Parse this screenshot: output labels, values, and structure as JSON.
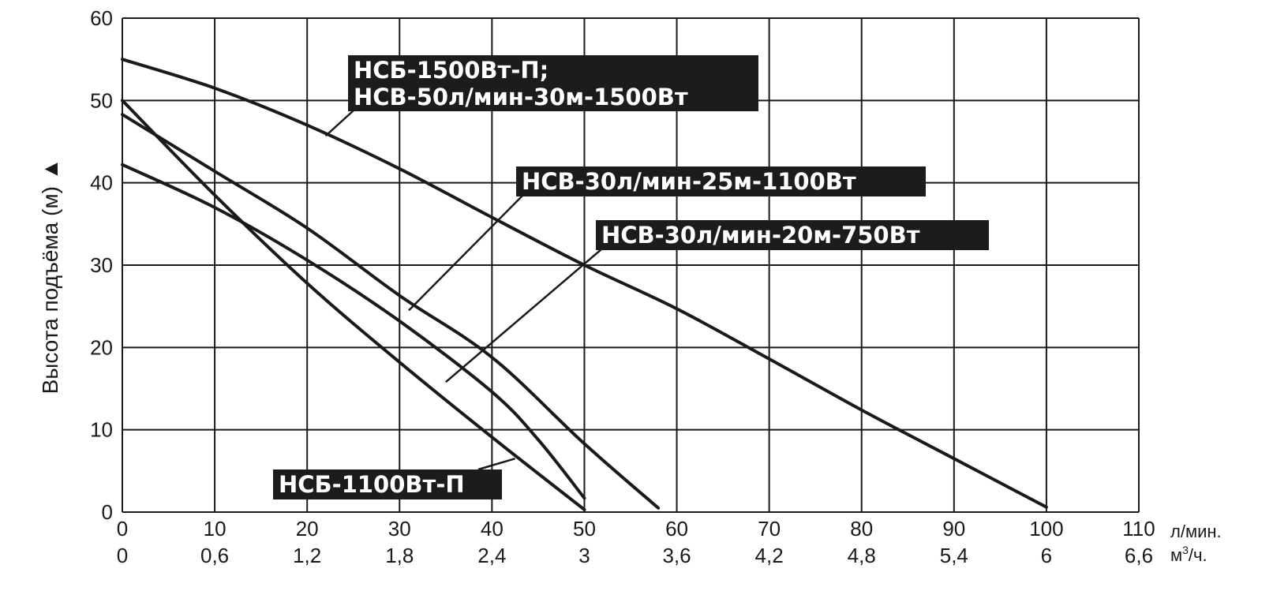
{
  "chart_data": {
    "type": "line",
    "ylabel": "Высота подъёма (м) ▲",
    "x_unit": "л/мин.",
    "x2_unit_base": "м",
    "x2_unit_sup": "3",
    "x2_unit_tail": "/ч.",
    "xlim": [
      0,
      110
    ],
    "ylim": [
      0,
      60
    ],
    "grid": true,
    "x_ticks": [
      0,
      10,
      20,
      30,
      40,
      50,
      60,
      70,
      80,
      90,
      100,
      110
    ],
    "x_tick_labels": [
      "0",
      "10",
      "20",
      "30",
      "40",
      "50",
      "60",
      "70",
      "80",
      "90",
      "100",
      "110"
    ],
    "x2_tick_labels": [
      "0",
      "0,6",
      "1,2",
      "1,8",
      "2,4",
      "3",
      "3,6",
      "4,2",
      "4,8",
      "5,4",
      "6",
      "6,6"
    ],
    "y_ticks": [
      0,
      10,
      20,
      30,
      40,
      50,
      60
    ],
    "y_tick_labels": [
      "0",
      "10",
      "20",
      "30",
      "40",
      "50",
      "60"
    ],
    "series": [
      {
        "points": [
          [
            0,
            55
          ],
          [
            10,
            51.5
          ],
          [
            20,
            47
          ],
          [
            30,
            41.7
          ],
          [
            40,
            35.8
          ],
          [
            50,
            30
          ],
          [
            60,
            24.7
          ],
          [
            70,
            18.6
          ],
          [
            80,
            12.4
          ],
          [
            90,
            6.5
          ],
          [
            100,
            0.6
          ]
        ]
      },
      {
        "points": [
          [
            0,
            48.3
          ],
          [
            10,
            41.4
          ],
          [
            20,
            34.5
          ],
          [
            30,
            26.3
          ],
          [
            40,
            18.8
          ],
          [
            50,
            8.3
          ],
          [
            58,
            0.5
          ]
        ]
      },
      {
        "points": [
          [
            0,
            50
          ],
          [
            10,
            38.5
          ],
          [
            20,
            27.8
          ],
          [
            30,
            18.2
          ],
          [
            40,
            9.1
          ],
          [
            50,
            0.3
          ]
        ]
      },
      {
        "points": [
          [
            0,
            42.2
          ],
          [
            10,
            37
          ],
          [
            20,
            30.6
          ],
          [
            30,
            23.2
          ],
          [
            40,
            14.6
          ],
          [
            45,
            8.8
          ],
          [
            50,
            1.7
          ]
        ]
      }
    ],
    "annotations": [
      {
        "lines": [
          "НСБ-1500Вт-П;",
          "НСВ-50л/мин-30м-1500Вт"
        ],
        "points_to": [
          22,
          45.7
        ]
      },
      {
        "lines": [
          "НСВ-30л/мин-25м-1100Вт"
        ],
        "points_to": [
          31,
          24.5
        ]
      },
      {
        "lines": [
          "НСВ-30л/мин-20м-750Вт"
        ],
        "points_to": [
          35,
          15.8
        ]
      },
      {
        "lines": [
          "НСБ-1100Вт-П"
        ],
        "points_to": [
          42.5,
          6.5
        ]
      }
    ]
  }
}
